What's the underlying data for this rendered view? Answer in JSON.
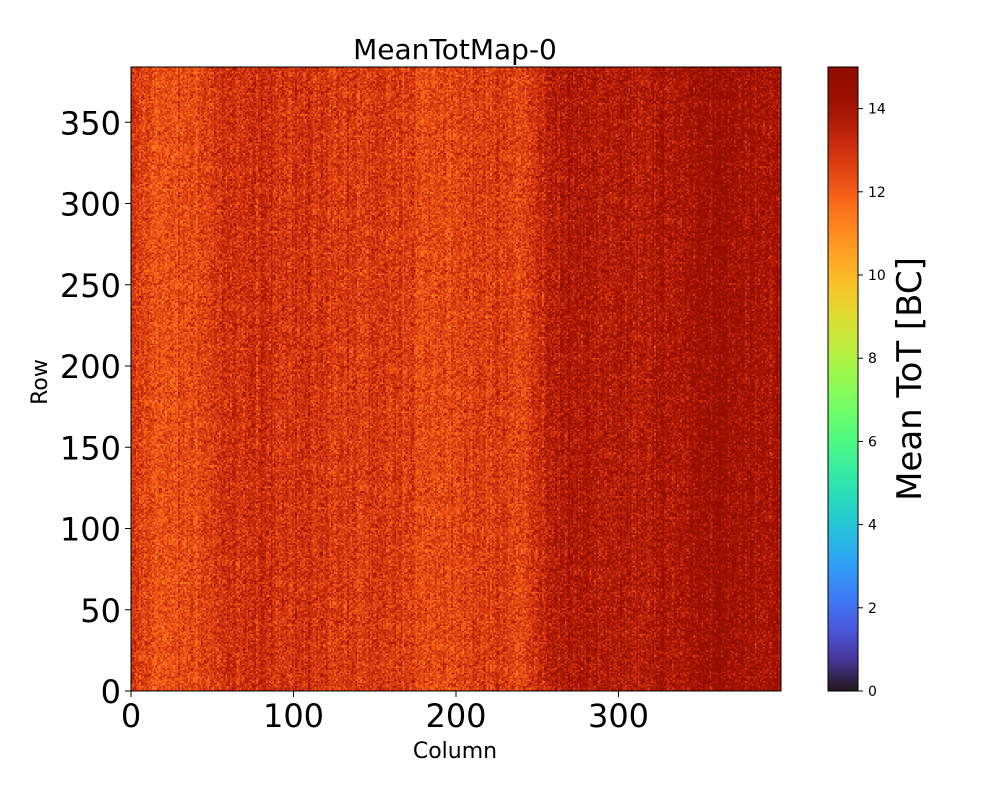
{
  "chart_data": {
    "type": "heatmap",
    "title": "MeanTotMap-0",
    "xlabel": "Column",
    "ylabel": "Row",
    "xlim": [
      0,
      400
    ],
    "ylim": [
      0,
      384
    ],
    "x_ticks": [
      0,
      100,
      200,
      300
    ],
    "y_ticks": [
      0,
      50,
      100,
      150,
      200,
      250,
      300,
      350
    ],
    "colorbar": {
      "label": "Mean ToT [BC]",
      "range": [
        0,
        15
      ],
      "ticks": [
        0,
        2,
        4,
        6,
        8,
        10,
        12,
        14
      ],
      "colormap": "turbo"
    },
    "grid_shape": {
      "columns": 400,
      "rows": 384
    },
    "column_profile": {
      "columns": [
        0,
        20,
        40,
        60,
        80,
        100,
        120,
        140,
        160,
        180,
        200,
        220,
        240,
        260,
        280,
        300,
        320,
        340,
        360,
        380,
        400
      ],
      "mean_tot": [
        12.8,
        12.2,
        12.5,
        13.0,
        13.1,
        13.0,
        12.9,
        12.7,
        12.8,
        12.5,
        12.6,
        12.8,
        12.5,
        13.7,
        13.8,
        13.7,
        13.8,
        13.9,
        14.3,
        14.1,
        14.0
      ]
    },
    "noise_spread": 1.1,
    "grid": false
  }
}
